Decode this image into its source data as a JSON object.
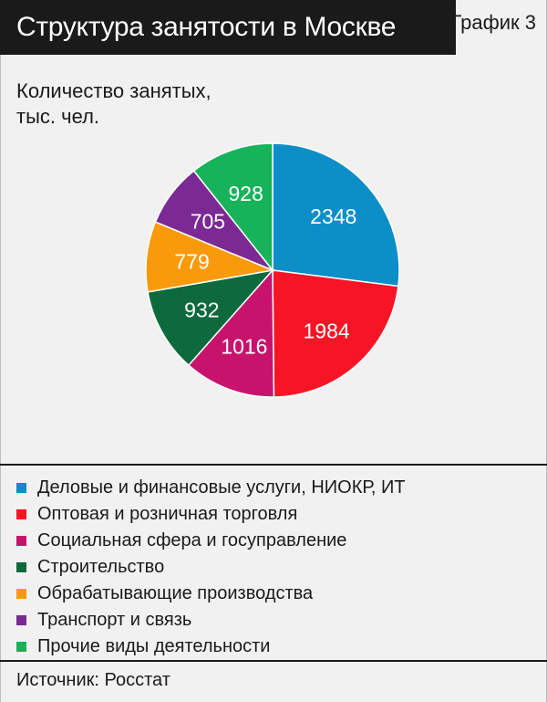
{
  "header": {
    "title": "Структура занятости в Москве",
    "chart_number": "График 3"
  },
  "unit_label": [
    "Количество занятых,",
    "тыс. чел."
  ],
  "source": "Источник: Росстат",
  "chart_data": {
    "type": "pie",
    "title": "Структура занятости в Москве",
    "unit": "Количество занятых, тыс. чел.",
    "slices": [
      {
        "label": "Деловые и финансовые услуги, НИОКР, ИТ",
        "value": 2348,
        "color": "#0c8ec8"
      },
      {
        "label": "Оптовая и розничная торговля",
        "value": 1984,
        "color": "#f71525"
      },
      {
        "label": "Социальная сфера и госуправление",
        "value": 1016,
        "color": "#c8136d"
      },
      {
        "label": "Строительство",
        "value": 932,
        "color": "#0d6a3c"
      },
      {
        "label": "Обрабатывающие производства",
        "value": 779,
        "color": "#f99a0c"
      },
      {
        "label": "Транспорт и связь",
        "value": 705,
        "color": "#7a2a92"
      },
      {
        "label": "Прочие виды деятельности",
        "value": 928,
        "color": "#16b35a"
      }
    ],
    "legend_position": "bottom"
  }
}
